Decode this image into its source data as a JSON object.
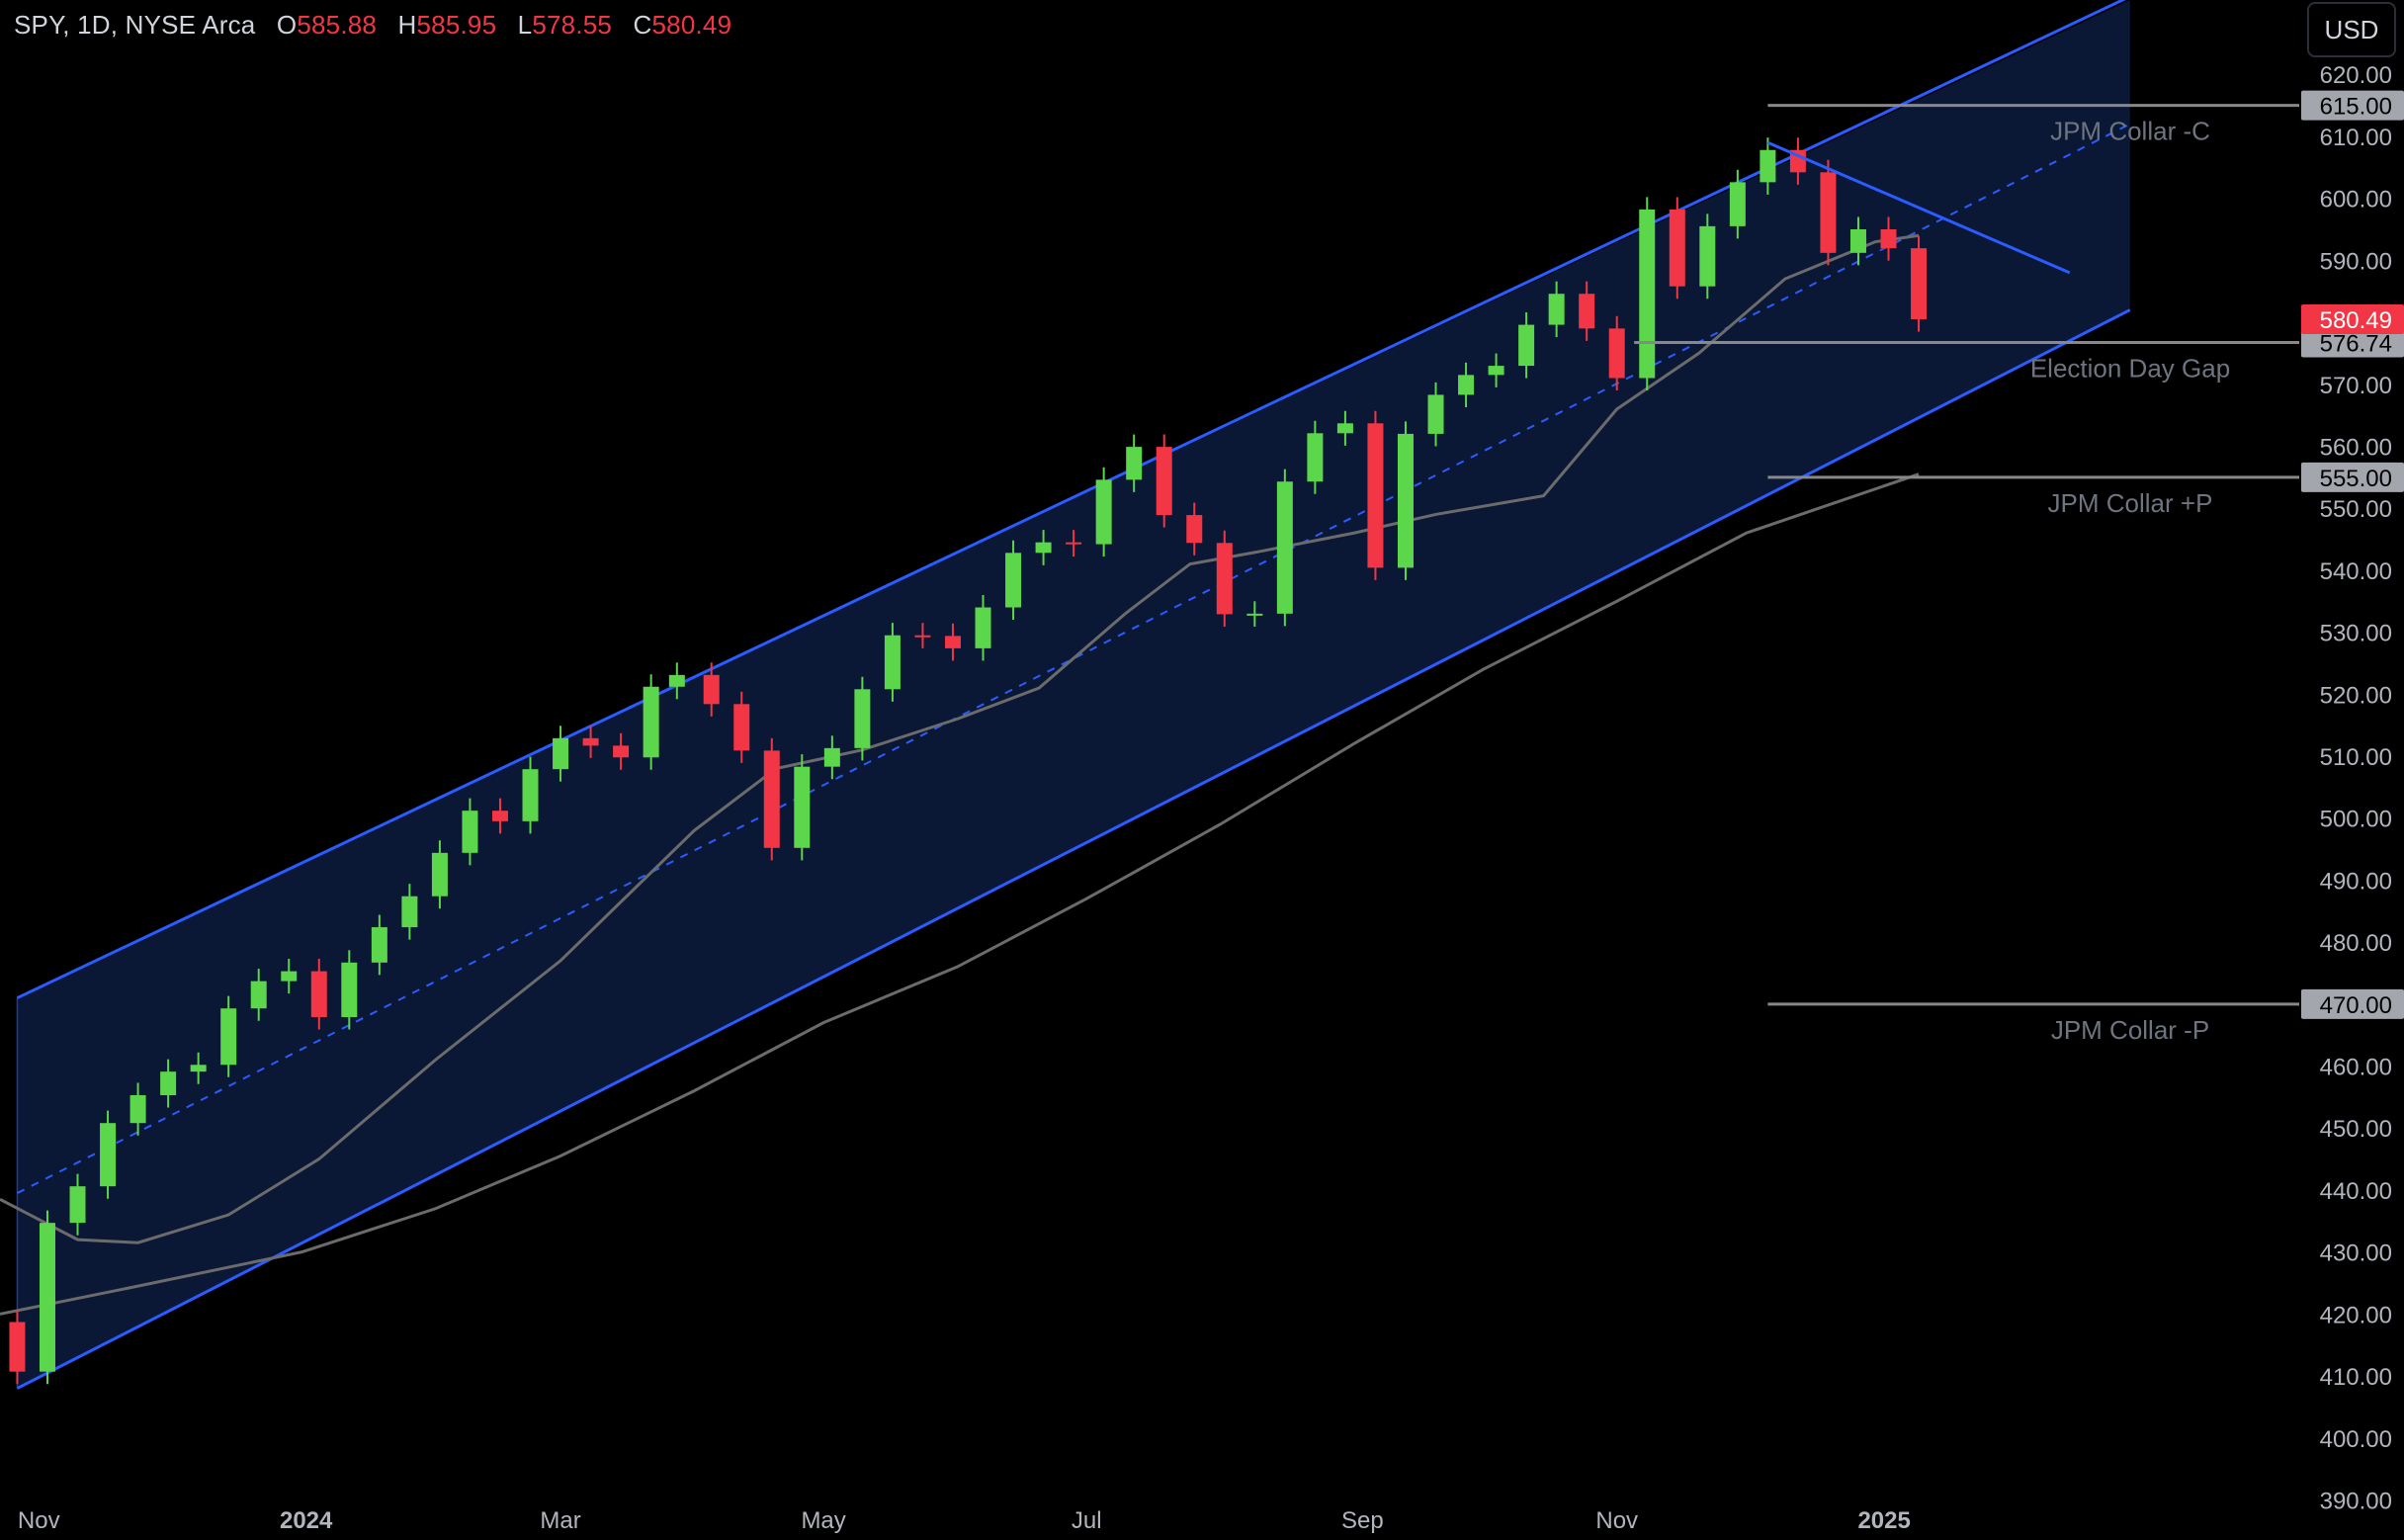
{
  "header": {
    "symbol": "SPY, 1D, NYSE Arca",
    "open_label": "O",
    "open": "585.88",
    "high_label": "H",
    "high": "585.95",
    "low_label": "L",
    "low": "578.55",
    "close_label": "C",
    "close": "580.49"
  },
  "currency_button": "USD",
  "colors": {
    "background": "#000000",
    "up": "#5cd64a",
    "down": "#f23645",
    "channel": "#2a5cff",
    "channel_fill": "#0b1838",
    "ma": "#6b6b6b",
    "level": "#888888"
  },
  "chart_data": {
    "type": "candlestick",
    "title": "",
    "y_axis": {
      "ticks": [
        "620.00",
        "610.00",
        "600.00",
        "590.00",
        "570.00",
        "560.00",
        "550.00",
        "540.00",
        "530.00",
        "520.00",
        "510.00",
        "500.00",
        "490.00",
        "480.00",
        "460.00",
        "450.00",
        "440.00",
        "430.00",
        "420.00",
        "410.00",
        "400.00",
        "390.00"
      ],
      "range": [
        388,
        632
      ]
    },
    "x_axis": {
      "ticks": [
        {
          "label": "Nov",
          "date": "2023-11-01"
        },
        {
          "label": "2024",
          "date": "2024-01-02"
        },
        {
          "label": "Mar",
          "date": "2024-03-01"
        },
        {
          "label": "May",
          "date": "2024-05-01"
        },
        {
          "label": "Jul",
          "date": "2024-07-01"
        },
        {
          "label": "Sep",
          "date": "2024-09-03"
        },
        {
          "label": "Nov",
          "date": "2024-11-01"
        },
        {
          "label": "2025",
          "date": "2025-01-02"
        }
      ],
      "range": [
        "2023-10-23",
        "2025-03-31"
      ]
    },
    "closes": [
      {
        "date": "2023-10-27",
        "value": 410.7
      },
      {
        "date": "2023-11-03",
        "value": 434.7
      },
      {
        "date": "2023-11-10",
        "value": 440.6
      },
      {
        "date": "2023-11-17",
        "value": 450.8
      },
      {
        "date": "2023-11-24",
        "value": 455.3
      },
      {
        "date": "2023-12-01",
        "value": 459.1
      },
      {
        "date": "2023-12-08",
        "value": 460.2
      },
      {
        "date": "2023-12-15",
        "value": 469.3
      },
      {
        "date": "2023-12-22",
        "value": 473.7
      },
      {
        "date": "2023-12-29",
        "value": 475.3
      },
      {
        "date": "2024-01-05",
        "value": 467.9
      },
      {
        "date": "2024-01-12",
        "value": 476.7
      },
      {
        "date": "2024-01-19",
        "value": 482.4
      },
      {
        "date": "2024-01-26",
        "value": 487.4
      },
      {
        "date": "2024-02-02",
        "value": 494.4
      },
      {
        "date": "2024-02-09",
        "value": 501.2
      },
      {
        "date": "2024-02-16",
        "value": 499.5
      },
      {
        "date": "2024-02-23",
        "value": 507.9
      },
      {
        "date": "2024-03-01",
        "value": 512.9
      },
      {
        "date": "2024-03-08",
        "value": 511.7
      },
      {
        "date": "2024-03-15",
        "value": 509.8
      },
      {
        "date": "2024-03-22",
        "value": 521.2
      },
      {
        "date": "2024-03-28",
        "value": 523.1
      },
      {
        "date": "2024-04-05",
        "value": 518.4
      },
      {
        "date": "2024-04-12",
        "value": 510.9
      },
      {
        "date": "2024-04-19",
        "value": 495.2
      },
      {
        "date": "2024-04-26",
        "value": 508.3
      },
      {
        "date": "2024-05-03",
        "value": 511.3
      },
      {
        "date": "2024-05-10",
        "value": 520.8
      },
      {
        "date": "2024-05-17",
        "value": 529.5
      },
      {
        "date": "2024-05-24",
        "value": 529.4
      },
      {
        "date": "2024-05-31",
        "value": 527.4
      },
      {
        "date": "2024-06-07",
        "value": 534.0
      },
      {
        "date": "2024-06-14",
        "value": 542.8
      },
      {
        "date": "2024-06-21",
        "value": 544.5
      },
      {
        "date": "2024-06-28",
        "value": 544.2
      },
      {
        "date": "2024-07-05",
        "value": 554.6
      },
      {
        "date": "2024-07-12",
        "value": 559.9
      },
      {
        "date": "2024-07-19",
        "value": 548.9
      },
      {
        "date": "2024-07-26",
        "value": 544.4
      },
      {
        "date": "2024-08-02",
        "value": 532.9
      },
      {
        "date": "2024-08-09",
        "value": 532.99
      },
      {
        "date": "2024-08-16",
        "value": 554.3
      },
      {
        "date": "2024-08-23",
        "value": 562.1
      },
      {
        "date": "2024-08-30",
        "value": 563.7
      },
      {
        "date": "2024-09-06",
        "value": 540.4
      },
      {
        "date": "2024-09-13",
        "value": 562.0
      },
      {
        "date": "2024-09-20",
        "value": 568.3
      },
      {
        "date": "2024-09-27",
        "value": 571.5
      },
      {
        "date": "2024-10-04",
        "value": 572.98
      },
      {
        "date": "2024-10-11",
        "value": 579.6
      },
      {
        "date": "2024-10-18",
        "value": 584.6
      },
      {
        "date": "2024-10-25",
        "value": 579.0
      },
      {
        "date": "2024-11-01",
        "value": 571.0
      },
      {
        "date": "2024-11-08",
        "value": 598.2
      },
      {
        "date": "2024-11-15",
        "value": 585.8
      },
      {
        "date": "2024-11-22",
        "value": 595.5
      },
      {
        "date": "2024-11-29",
        "value": 602.6
      },
      {
        "date": "2024-12-06",
        "value": 607.8
      },
      {
        "date": "2024-12-13",
        "value": 604.2
      },
      {
        "date": "2024-12-20",
        "value": 591.2
      },
      {
        "date": "2024-12-27",
        "value": 595.0
      },
      {
        "date": "2025-01-03",
        "value": 591.95
      },
      {
        "date": "2025-01-10",
        "value": 580.49
      }
    ],
    "channel": {
      "start": {
        "date": "2023-10-27",
        "upper": 471.0,
        "mid": 439.5,
        "lower": 408.0
      },
      "end": {
        "date": "2025-02-28",
        "upper": 632.0,
        "mid": 612.0,
        "lower": 582.0
      }
    },
    "ma_50": [
      {
        "date": "2023-10-23",
        "value": 438.5
      },
      {
        "date": "2023-11-10",
        "value": 432.0
      },
      {
        "date": "2023-11-24",
        "value": 431.5
      },
      {
        "date": "2023-12-15",
        "value": 436.0
      },
      {
        "date": "2024-01-05",
        "value": 445.0
      },
      {
        "date": "2024-02-01",
        "value": 461.0
      },
      {
        "date": "2024-03-01",
        "value": 477.0
      },
      {
        "date": "2024-04-01",
        "value": 498.0
      },
      {
        "date": "2024-04-20",
        "value": 508.0
      },
      {
        "date": "2024-05-10",
        "value": 511.0
      },
      {
        "date": "2024-06-01",
        "value": 516.0
      },
      {
        "date": "2024-06-20",
        "value": 521.0
      },
      {
        "date": "2024-07-10",
        "value": 533.0
      },
      {
        "date": "2024-07-25",
        "value": 541.0
      },
      {
        "date": "2024-08-10",
        "value": 543.0
      },
      {
        "date": "2024-09-01",
        "value": 546.0
      },
      {
        "date": "2024-09-20",
        "value": 549.0
      },
      {
        "date": "2024-10-15",
        "value": 552.0
      },
      {
        "date": "2024-11-01",
        "value": 566.0
      },
      {
        "date": "2024-11-20",
        "value": 575.0
      },
      {
        "date": "2024-12-10",
        "value": 587.0
      },
      {
        "date": "2024-12-31",
        "value": 593.0
      },
      {
        "date": "2025-01-10",
        "value": 594.0
      }
    ],
    "ma_200": [
      {
        "date": "2023-10-23",
        "value": 420.0
      },
      {
        "date": "2023-11-24",
        "value": 424.5
      },
      {
        "date": "2024-01-01",
        "value": 430.0
      },
      {
        "date": "2024-02-01",
        "value": 437.0
      },
      {
        "date": "2024-03-01",
        "value": 445.5
      },
      {
        "date": "2024-04-01",
        "value": 456.0
      },
      {
        "date": "2024-05-01",
        "value": 467.0
      },
      {
        "date": "2024-06-01",
        "value": 476.0
      },
      {
        "date": "2024-07-01",
        "value": 487.0
      },
      {
        "date": "2024-08-01",
        "value": 499.0
      },
      {
        "date": "2024-09-01",
        "value": 512.0
      },
      {
        "date": "2024-10-01",
        "value": 524.0
      },
      {
        "date": "2024-11-01",
        "value": 535.0
      },
      {
        "date": "2024-12-01",
        "value": 546.0
      },
      {
        "date": "2025-01-10",
        "value": 555.5
      }
    ],
    "trendline_down": [
      {
        "date": "2024-12-06",
        "value": 609.0
      },
      {
        "date": "2025-02-14",
        "value": 588.0
      }
    ],
    "levels": [
      {
        "label": "JPM Collar -C",
        "value": 615.0,
        "value_label": "615.00"
      },
      {
        "label": "Election Day Gap",
        "value": 576.74,
        "value_label": "576.74"
      },
      {
        "label": "JPM Collar +P",
        "value": 555.0,
        "value_label": "555.00"
      },
      {
        "label": "JPM Collar -P",
        "value": 470.0,
        "value_label": "470.00"
      }
    ],
    "last_price": {
      "value": 580.49,
      "value_label": "580.49"
    },
    "grid": false,
    "legend": "none"
  }
}
